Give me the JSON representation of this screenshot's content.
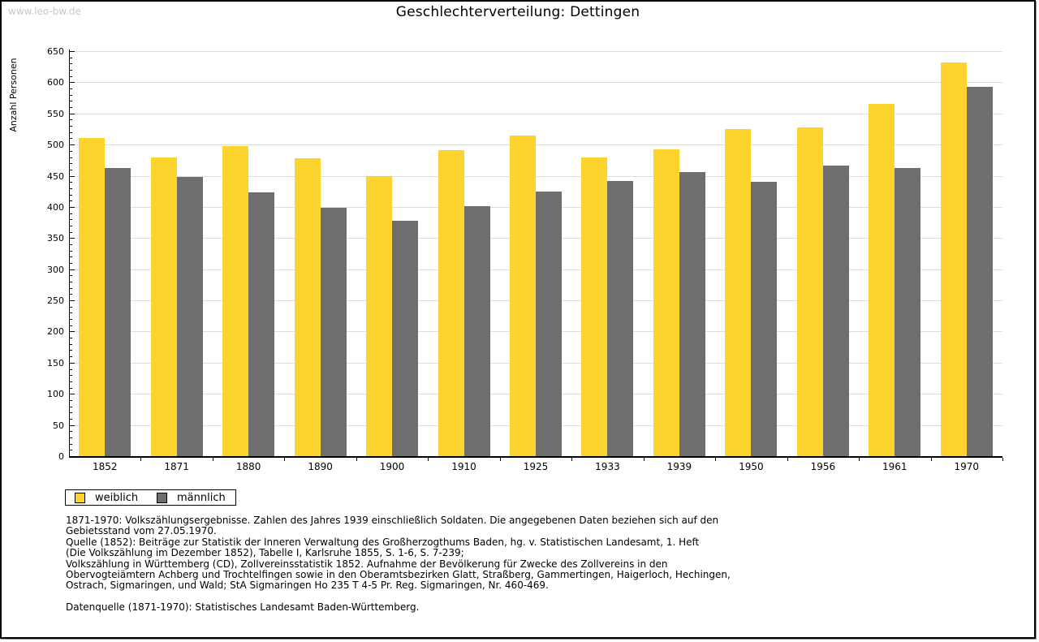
{
  "watermark": "www.leo-bw.de",
  "title": "Geschlechterverteilung: Dettingen",
  "chart_data": {
    "type": "bar",
    "title": "Geschlechterverteilung: Dettingen",
    "xlabel": "",
    "ylabel": "Anzahl Personen",
    "categories": [
      "1852",
      "1871",
      "1880",
      "1890",
      "1900",
      "1910",
      "1925",
      "1933",
      "1939",
      "1950",
      "1956",
      "1961",
      "1970"
    ],
    "series": [
      {
        "name": "weiblich",
        "color": "#FCD42D",
        "values": [
          510,
          480,
          497,
          478,
          449,
          491,
          514,
          480,
          492,
          525,
          528,
          565,
          632
        ]
      },
      {
        "name": "männlich",
        "color": "#6E6E6E",
        "values": [
          463,
          448,
          423,
          398,
          378,
          401,
          424,
          442,
          456,
          440,
          466,
          462,
          593
        ]
      }
    ],
    "ylim": [
      0,
      650
    ],
    "ytick_major": 50,
    "ytick_minor": 10,
    "grid": "horizontal",
    "legend_position": "bottom-left"
  },
  "colors": {
    "female_bar": "#FCD42D",
    "male_bar": "#6E6E6E",
    "gridline": "#DEDEDE",
    "axis": "#000000",
    "watermark_text": "#C8C8C8"
  },
  "footer": {
    "lines": [
      "1871-1970: Volkszählungsergebnisse. Zahlen des Jahres 1939 einschließlich Soldaten. Die angegebenen Daten beziehen sich auf den",
      "Gebietsstand vom 27.05.1970.",
      "Quelle (1852): Beiträge zur Statistik der Inneren Verwaltung des Großherzogthums Baden, hg. v. Statistischen Landesamt, 1. Heft",
      "(Die Volkszählung im Dezember 1852), Tabelle I, Karlsruhe 1855, S. 1-6, S. 7-239;",
      "Volkszählung in Württemberg (CD), Zollvereinsstatistik 1852. Aufnahme der Bevölkerung für Zwecke des Zollvereins in den",
      "Obervogteiämtern Achberg und Trochtelfingen sowie in den Oberamtsbezirken Glatt, Straßberg, Gammertingen, Haigerloch, Hechingen,",
      "Ostrach, Sigmaringen, und Wald; StA Sigmaringen Ho 235 T 4-5 Pr. Reg. Sigmaringen, Nr. 460-469."
    ],
    "datasource": "Datenquelle (1871-1970): Statistisches Landesamt Baden-Württemberg."
  }
}
